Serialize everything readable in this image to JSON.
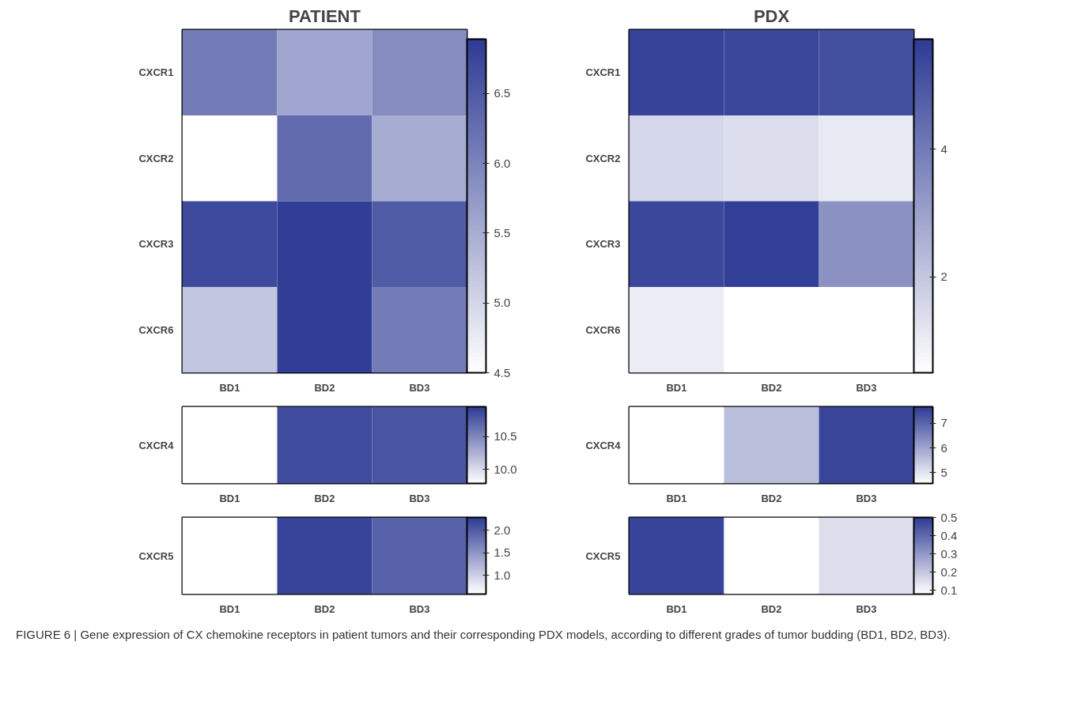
{
  "chart_data": [
    {
      "type": "heatmap",
      "title": "PATIENT",
      "categories": [
        "BD1",
        "BD2",
        "BD3"
      ],
      "y_categories": [
        "CXCR1",
        "CXCR2",
        "CXCR3",
        "CXCR6"
      ],
      "cells": [
        [
          6.1,
          5.6,
          5.9
        ],
        [
          4.5,
          6.3,
          5.5
        ],
        [
          6.7,
          6.85,
          6.5
        ],
        [
          5.2,
          6.85,
          6.1
        ]
      ],
      "clim": [
        4.5,
        6.89
      ],
      "cticks": [
        4.5,
        {
          "value": 5,
          "label": "5.0"
        },
        5.5,
        {
          "value": 6,
          "label": "6.0"
        },
        6.5
      ]
    },
    {
      "type": "heatmap",
      "title": "PDX",
      "categories": [
        "BD1",
        "BD2",
        "BD3"
      ],
      "y_categories": [
        "CXCR1",
        "CXCR2",
        "CXCR3",
        "CXCR6"
      ],
      "cells": [
        [
          5.5,
          5.4,
          5.2
        ],
        [
          1.6,
          1.4,
          1.1
        ],
        [
          5.4,
          5.6,
          3.4
        ],
        [
          1.0,
          0.5,
          0.5
        ]
      ],
      "clim": [
        0.5,
        5.72
      ],
      "cticks": [
        2,
        4
      ]
    },
    {
      "type": "heatmap",
      "categories": [
        "BD1",
        "BD2",
        "BD3"
      ],
      "y_categories": [
        "CXCR4"
      ],
      "cells": [
        [
          9.79,
          10.85,
          10.8
        ]
      ],
      "clim": [
        9.79,
        10.95
      ],
      "cticks": [
        {
          "value": 10,
          "label": "10.0"
        },
        10.5
      ]
    },
    {
      "type": "heatmap",
      "categories": [
        "BD1",
        "BD2",
        "BD3"
      ],
      "y_categories": [
        "CXCR4"
      ],
      "cells": [
        [
          4.56,
          5.6,
          7.5
        ]
      ],
      "clim": [
        4.56,
        7.67
      ],
      "cticks": [
        5,
        6,
        7
      ]
    },
    {
      "type": "heatmap",
      "categories": [
        "BD1",
        "BD2",
        "BD3"
      ],
      "y_categories": [
        "CXCR5"
      ],
      "cells": [
        [
          0.59,
          2.2,
          1.95
        ]
      ],
      "clim": [
        0.59,
        2.28
      ],
      "cticks": [
        {
          "value": 1,
          "label": "1.0"
        },
        1.5,
        {
          "value": 2,
          "label": "2.0"
        }
      ]
    },
    {
      "type": "heatmap",
      "categories": [
        "BD1",
        "BD2",
        "BD3"
      ],
      "y_categories": [
        "CXCR5"
      ],
      "cells": [
        [
          0.48,
          0.08,
          0.15
        ]
      ],
      "clim": [
        0.08,
        0.5
      ],
      "cticks": [
        0.1,
        0.2,
        0.3,
        0.4,
        0.5
      ],
      "annotations": [
        "FIGURE 6 | Gene expression of CX chemokine receptors in patient tumors and their corresponding PDX models, according to different grades of tumor budding (BD1, BD2, BD3)."
      ]
    }
  ]
}
